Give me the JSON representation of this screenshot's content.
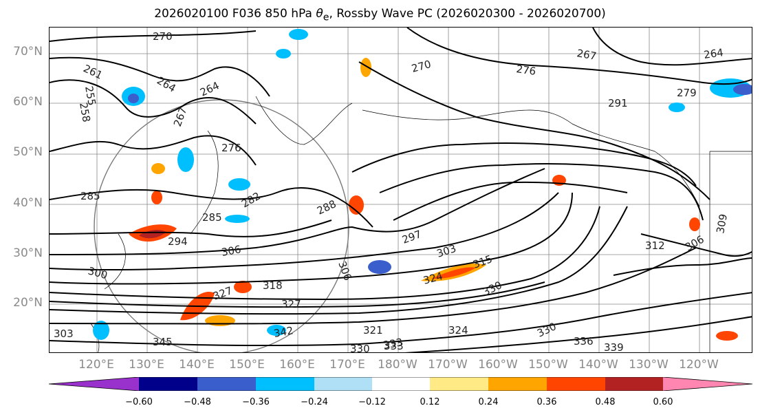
{
  "title": {
    "prefix": "2026020100 F036 850 hPa ",
    "var_symbol": "θ",
    "var_sub": "e",
    "suffix": ", Rossby Wave PC (2026020300 - 2026020700)"
  },
  "axes": {
    "lat_labels": [
      "70°N",
      "60°N",
      "50°N",
      "40°N",
      "30°N",
      "20°N"
    ],
    "lon_labels": [
      "120°E",
      "130°E",
      "140°E",
      "150°E",
      "160°E",
      "170°E",
      "180°W",
      "170°W",
      "160°W",
      "150°W",
      "140°W",
      "130°W",
      "120°W"
    ]
  },
  "contour_labels": [
    "270",
    "261",
    "264",
    "264",
    "255",
    "258",
    "267",
    "270",
    "276",
    "264",
    "267",
    "279",
    "291",
    "276",
    "282",
    "285",
    "285",
    "288",
    "294",
    "297",
    "300",
    "303",
    "306",
    "306",
    "306",
    "309",
    "312",
    "315",
    "318",
    "321",
    "324",
    "324",
    "327",
    "327",
    "330",
    "330",
    "330",
    "333",
    "333",
    "336",
    "339",
    "345",
    "342",
    "303"
  ],
  "colorbar": {
    "ticks": [
      "−0.60",
      "−0.48",
      "−0.36",
      "−0.24",
      "−0.12",
      "0.12",
      "0.24",
      "0.36",
      "0.48",
      "0.60"
    ],
    "colors": [
      "#9932cc",
      "#00008b",
      "#3a5fcd",
      "#00bfff",
      "#b0e0f6",
      "#ffffff",
      "#ffea86",
      "#ffa500",
      "#ff4500",
      "#b22222",
      "#ff86b0"
    ]
  }
}
